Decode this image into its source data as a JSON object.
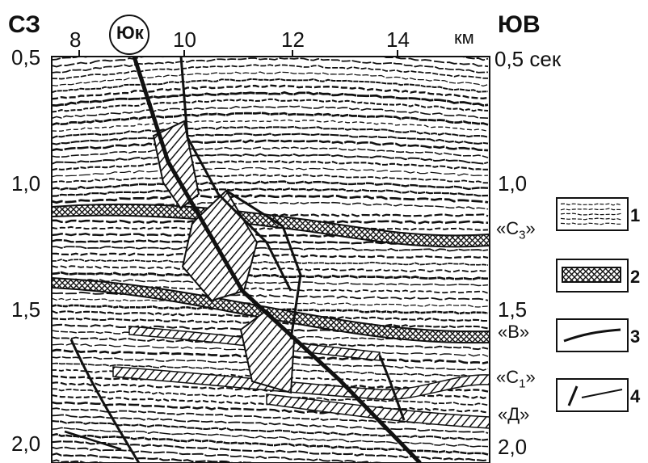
{
  "corner_left": "СЗ",
  "corner_right": "ЮВ",
  "well_label": "Юк",
  "x_ticks": [
    "8",
    "10",
    "12",
    "14"
  ],
  "x_unit": "км",
  "y_left_ticks": [
    "0,5",
    "1,0",
    "1,5",
    "2,0"
  ],
  "y_right_top": "0,5 сек",
  "y_right_ticks": [
    "1,0",
    "1,5",
    "2,0"
  ],
  "horizons": [
    {
      "label": "«С",
      "sub": "3",
      "close": "»"
    },
    {
      "label": "«В»",
      "sub": "",
      "close": ""
    },
    {
      "label": "«С",
      "sub": "1",
      "close": "»"
    },
    {
      "label": "«Д»",
      "sub": "",
      "close": ""
    }
  ],
  "legend": [
    {
      "num": "1",
      "icon": "seismic-texture-icon"
    },
    {
      "num": "2",
      "icon": "reflector-band-icon"
    },
    {
      "num": "3",
      "icon": "horizon-line-icon"
    },
    {
      "num": "4",
      "icon": "fault-line-icon"
    }
  ],
  "colors": {
    "ink": "#111111",
    "paper": "#ffffff"
  }
}
